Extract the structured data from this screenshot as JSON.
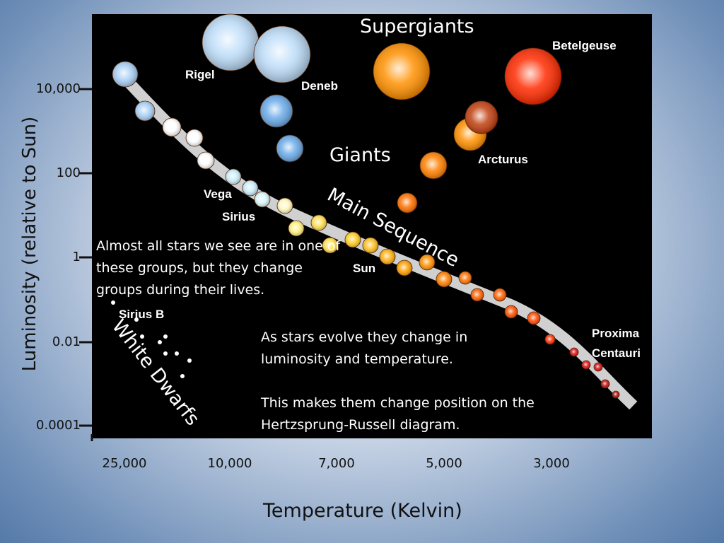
{
  "axes": {
    "y_label": "Luminosity (relative to Sun)",
    "y_ticks": [
      "10,000",
      "100",
      "1",
      "0.01",
      "0.0001"
    ],
    "x_label": "Temperature (Kelvin)",
    "x_ticks": [
      "25,000",
      "10,000",
      "7,000",
      "5,000",
      "3,000"
    ]
  },
  "groups": {
    "supergiants": "Supergiants",
    "giants": "Giants",
    "main_sequence": "Main Sequence",
    "white_dwarfs": "White Dwarfs"
  },
  "stars": {
    "rigel": "Rigel",
    "deneb": "Deneb",
    "betelgeuse": "Betelgeuse",
    "arcturus": "Arcturus",
    "vega": "Vega",
    "sirius": "Sirius",
    "sun": "Sun",
    "sirius_b": "Sirius B",
    "proxima": "Proxima Centauri"
  },
  "notes": [
    "Almost all stars we see are in one of these groups, but they change groups during their lives.",
    "As stars evolve they change in luminosity and temperature.",
    "This makes them change position on the Hertzsprung-Russell diagram."
  ]
}
